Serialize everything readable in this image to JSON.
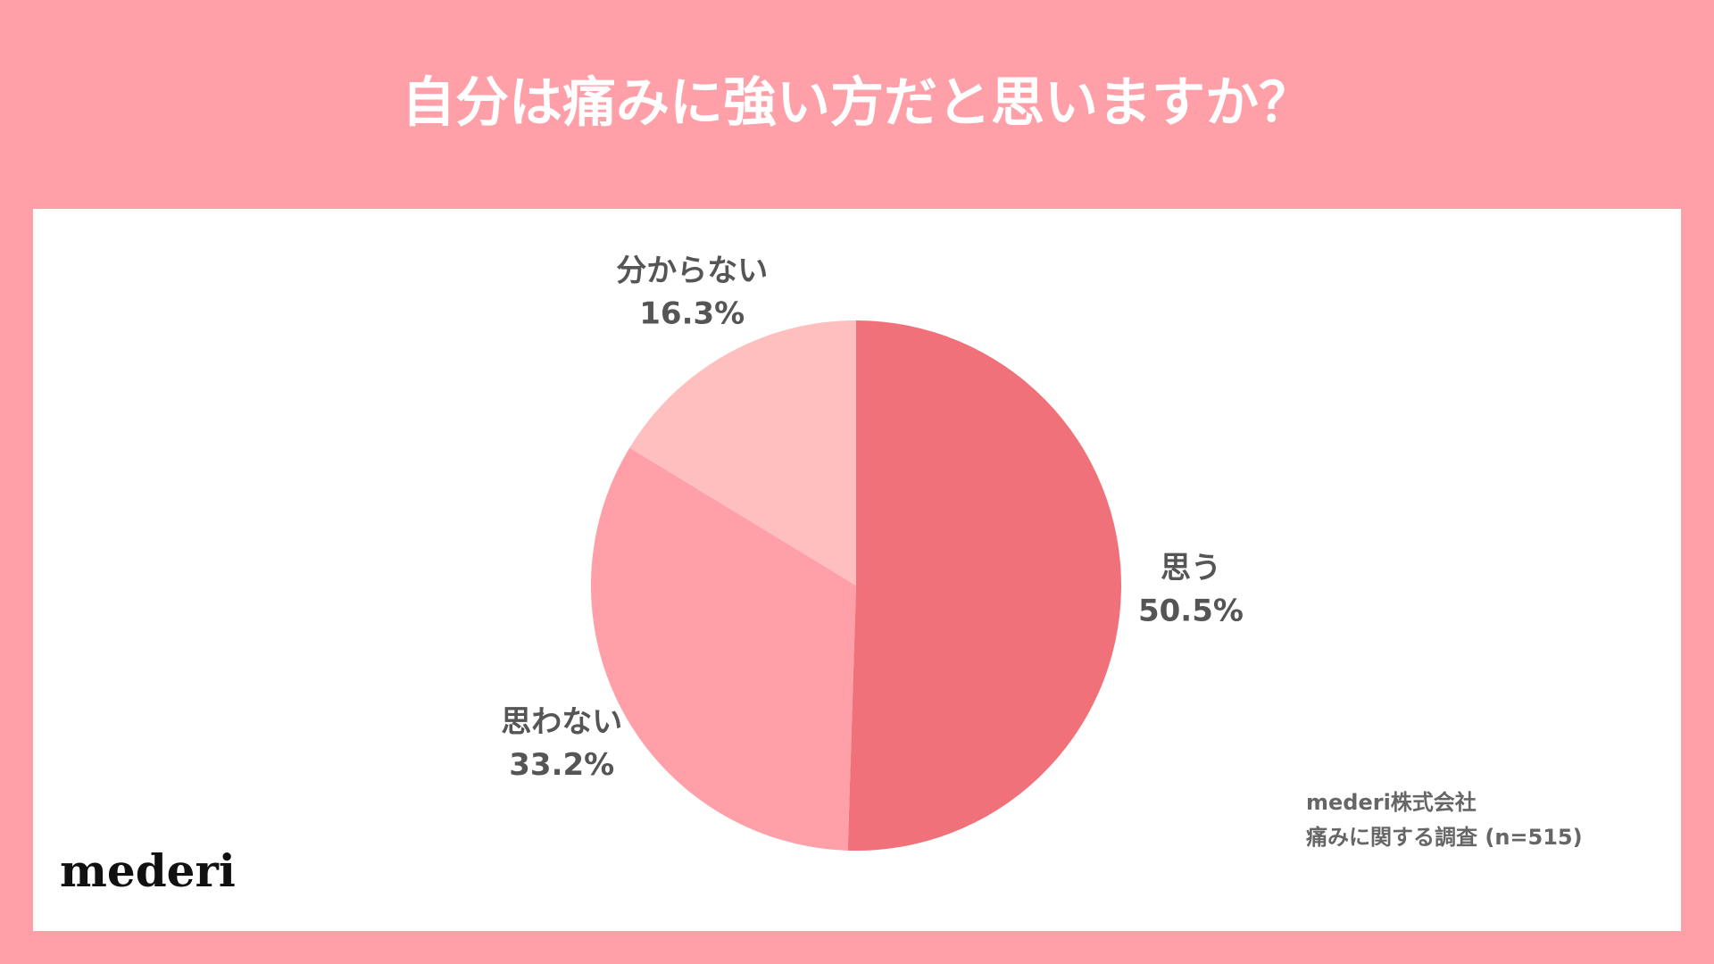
{
  "chart_data": {
    "type": "pie",
    "title": "自分は痛みに強い方だと思いますか？",
    "categories": [
      "思う",
      "思わない",
      "分からない"
    ],
    "values": [
      50.5,
      33.2,
      16.3
    ],
    "value_labels": [
      "50.5%",
      "33.2%",
      "16.3%"
    ],
    "colors": [
      "#f07179",
      "#ffa0a8",
      "#ffbfbe"
    ],
    "source": [
      "mederi株式会社",
      "痛みに関する調査 (n=515)"
    ]
  },
  "logo": "mederi"
}
